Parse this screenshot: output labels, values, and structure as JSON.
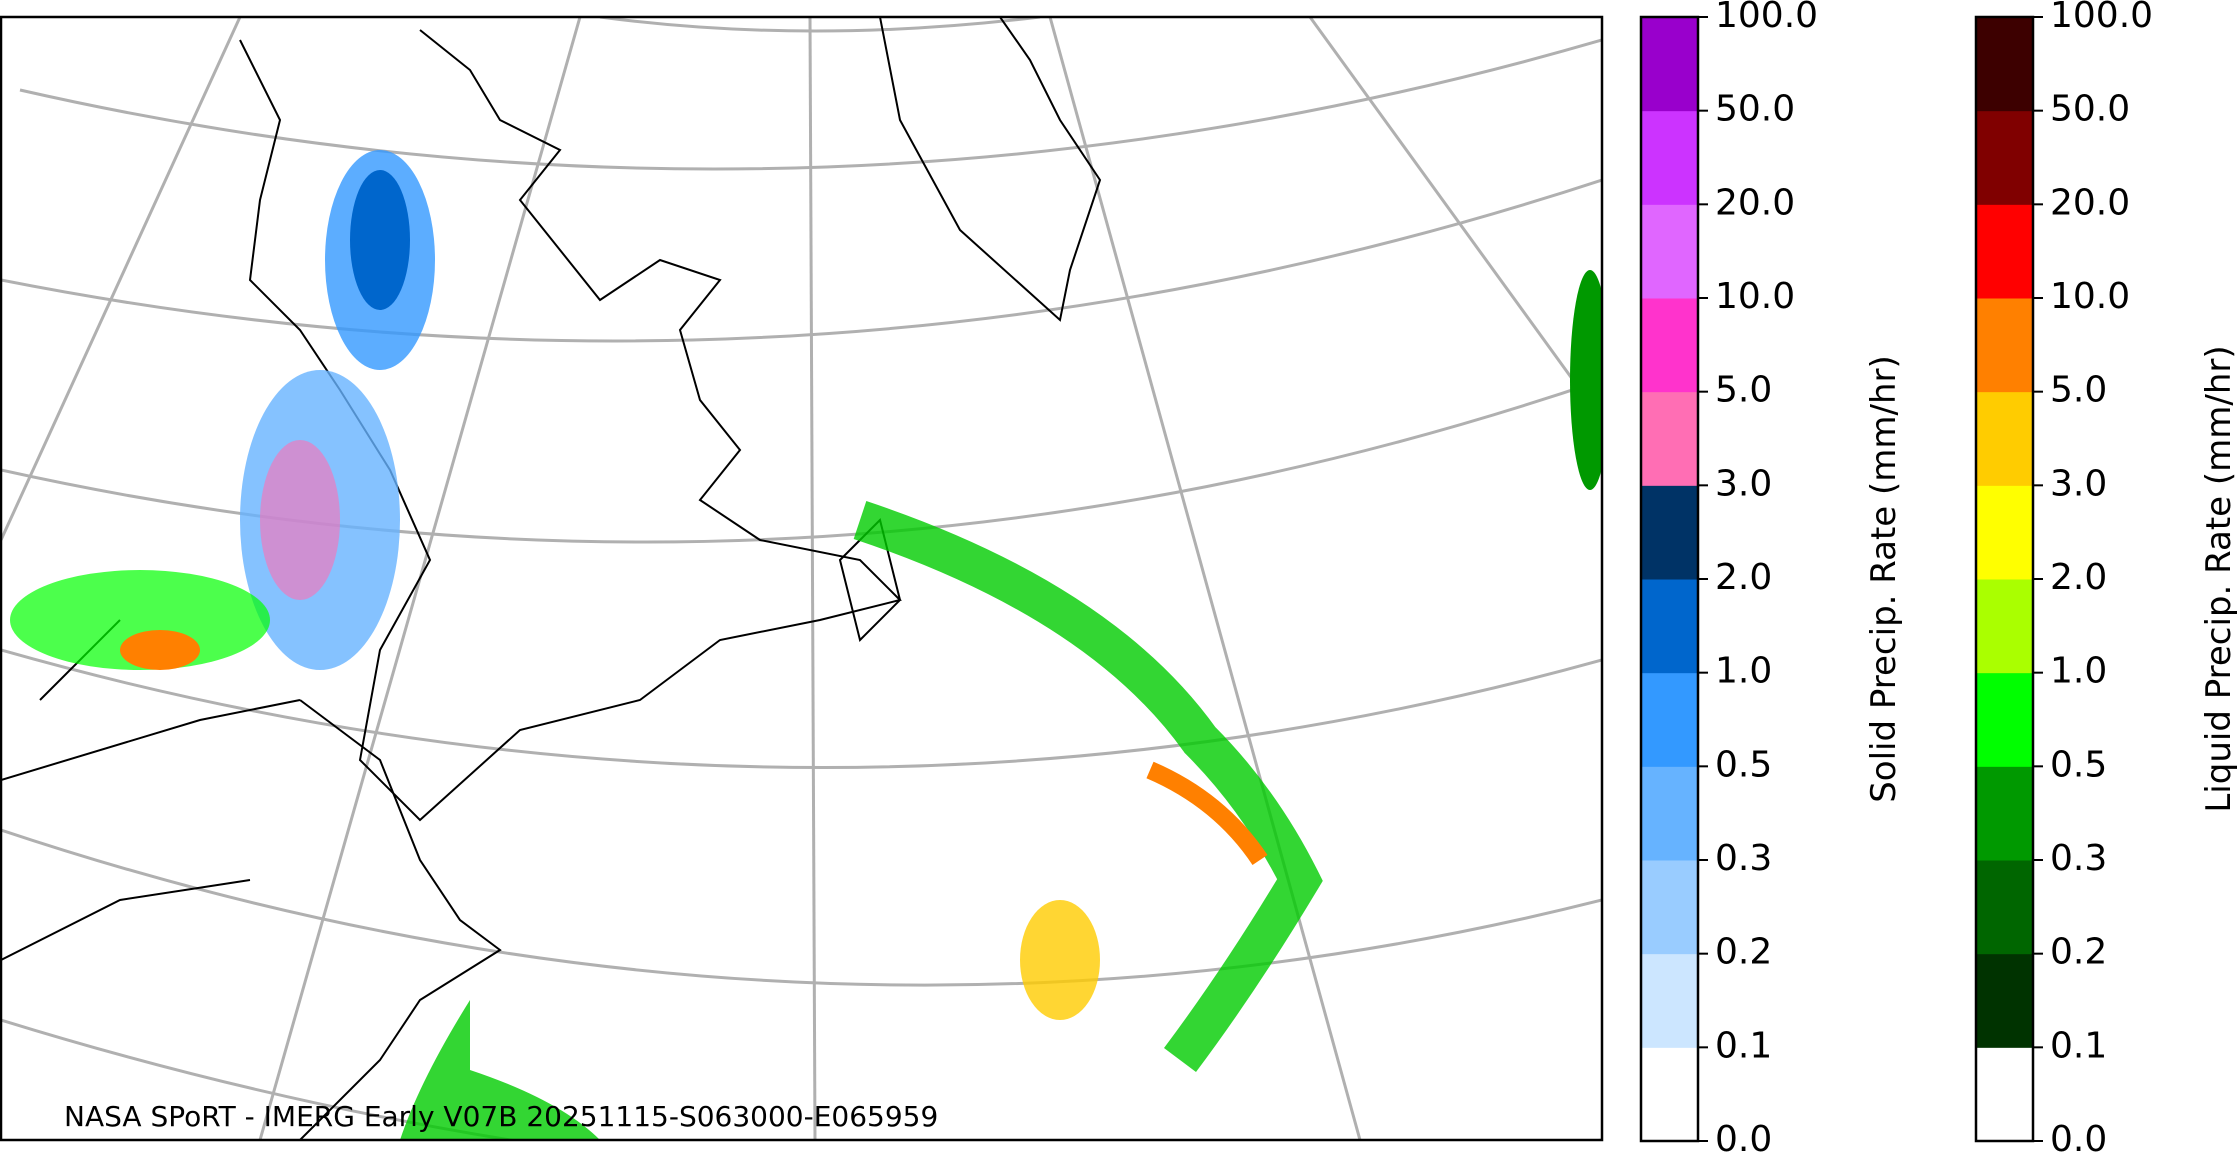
{
  "map": {
    "caption": "NASA SPoRT - IMERG Early V07B 20251115-S063000-E065959"
  },
  "colorbars": [
    {
      "label": "Solid Precip. Rate (mm/hr)",
      "ticks": [
        "0.0",
        "0.1",
        "0.2",
        "0.3",
        "0.5",
        "1.0",
        "2.0",
        "3.0",
        "5.0",
        "10.0",
        "20.0",
        "50.0",
        "100.0"
      ],
      "colors": [
        "#ffffff",
        "#cce6ff",
        "#99ccff",
        "#66b3ff",
        "#3399ff",
        "#0066cc",
        "#003366",
        "#ff6eb4",
        "#ff33cc",
        "#e066ff",
        "#cc33ff",
        "#9900cc"
      ]
    },
    {
      "label": "Liquid Precip. Rate (mm/hr)",
      "ticks": [
        "0.0",
        "0.1",
        "0.2",
        "0.3",
        "0.5",
        "1.0",
        "2.0",
        "3.0",
        "5.0",
        "10.0",
        "20.0",
        "50.0",
        "100.0"
      ],
      "colors": [
        "#ffffff",
        "#003300",
        "#006600",
        "#009900",
        "#00ff00",
        "#aaff00",
        "#ffff00",
        "#ffcc00",
        "#ff8000",
        "#ff0000",
        "#800000",
        "#3d0000"
      ]
    }
  ]
}
